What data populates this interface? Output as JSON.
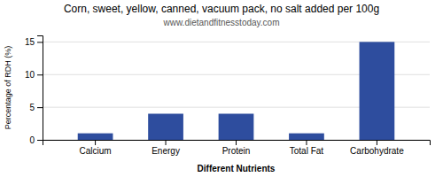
{
  "chart_data": {
    "type": "bar",
    "title": "Corn, sweet, yellow, canned, vacuum pack, no salt added per 100g",
    "subtitle": "www.dietandfitnesstoday.com",
    "categories": [
      "Calcium",
      "Energy",
      "Protein",
      "Total Fat",
      "Carbohydrate"
    ],
    "values": [
      1,
      4,
      4,
      1,
      15
    ],
    "color": "#2e4d9e",
    "xlabel": "Different Nutrients",
    "ylabel": "Percentage of RDH (%)",
    "ylim": [
      0,
      16
    ],
    "yticks": [
      0,
      5,
      10,
      15
    ],
    "grid": true
  }
}
